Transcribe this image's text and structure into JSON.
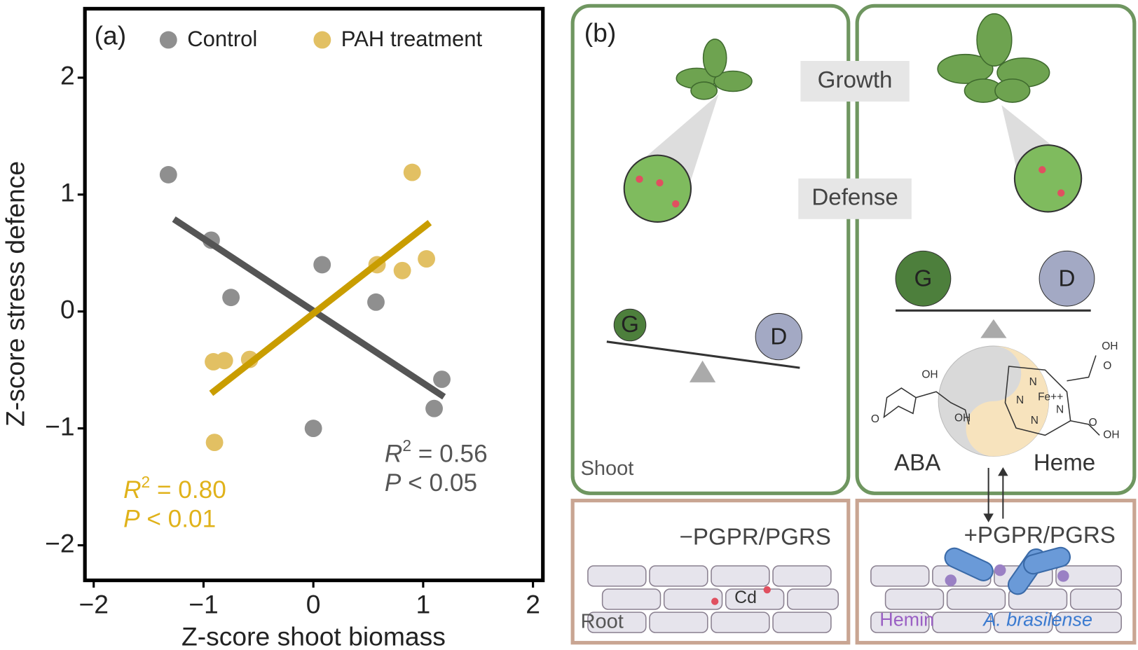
{
  "chart_data": {
    "type": "scatter",
    "panel_label": "(a)",
    "x_label": "Z-score shoot biomass",
    "y_label": "Z-score stress defence",
    "xlim": [
      -2.08,
      2.09
    ],
    "ylim": [
      -2.3,
      2.59
    ],
    "xticks": [
      {
        "value": -2,
        "label": "−2"
      },
      {
        "value": -1,
        "label": "−1"
      },
      0,
      1,
      2
    ],
    "yticks": [
      {
        "value": -2,
        "label": "−2"
      },
      {
        "value": -1,
        "label": "−1"
      },
      0,
      1,
      2
    ],
    "series": [
      {
        "name": "Control",
        "color": "#8f8f8f",
        "fit_color": "#555555",
        "x": [
          -1.32,
          -0.93,
          -0.75,
          0.08,
          0.57,
          0.0,
          1.17,
          1.1
        ],
        "values": [
          1.17,
          0.61,
          0.12,
          0.4,
          0.08,
          -1.0,
          -0.58,
          -0.83
        ],
        "fit": {
          "x": [
            -1.27,
            1.19
          ],
          "y": [
            0.79,
            -0.73
          ]
        },
        "stats": {
          "r": "R",
          "r_sup": "2",
          "r_value": " = 0.56",
          "p": "P",
          "p_value": " < 0.05"
        }
      },
      {
        "name": "PAH treatment",
        "color": "#e2c063",
        "fit_color": "#c99d00",
        "x": [
          0.9,
          0.58,
          1.03,
          0.81,
          -0.91,
          -0.81,
          -0.58,
          -0.9
        ],
        "values": [
          1.19,
          0.4,
          0.45,
          0.35,
          -0.43,
          -0.42,
          -0.41,
          -1.12
        ],
        "fit": {
          "x": [
            -0.93,
            1.06
          ],
          "y": [
            -0.7,
            0.76
          ]
        },
        "stats": {
          "r": "R",
          "r_sup": "2",
          "r_value": " = 0.80",
          "p": "P",
          "p_value": " < 0.01"
        }
      }
    ]
  },
  "diagram": {
    "panel_label": "(b)",
    "growth": "Growth",
    "defense": "Defense",
    "left": {
      "g": "G",
      "d": "D",
      "label": "Shoot",
      "root_condition": "−PGPR/PGRS",
      "root": "Root",
      "cd": "Cd"
    },
    "right": {
      "g": "G",
      "d": "D",
      "aba": "ABA",
      "heme": "Heme",
      "root_condition": "+PGPR/PGRS",
      "hemin": "Hemin",
      "bacterium": "A. brasilense"
    },
    "chemistry": [
      "OH",
      "O",
      "OH",
      "N",
      "N",
      "N",
      "N",
      "Fe++",
      "OH",
      "OH",
      "O",
      "O"
    ]
  }
}
